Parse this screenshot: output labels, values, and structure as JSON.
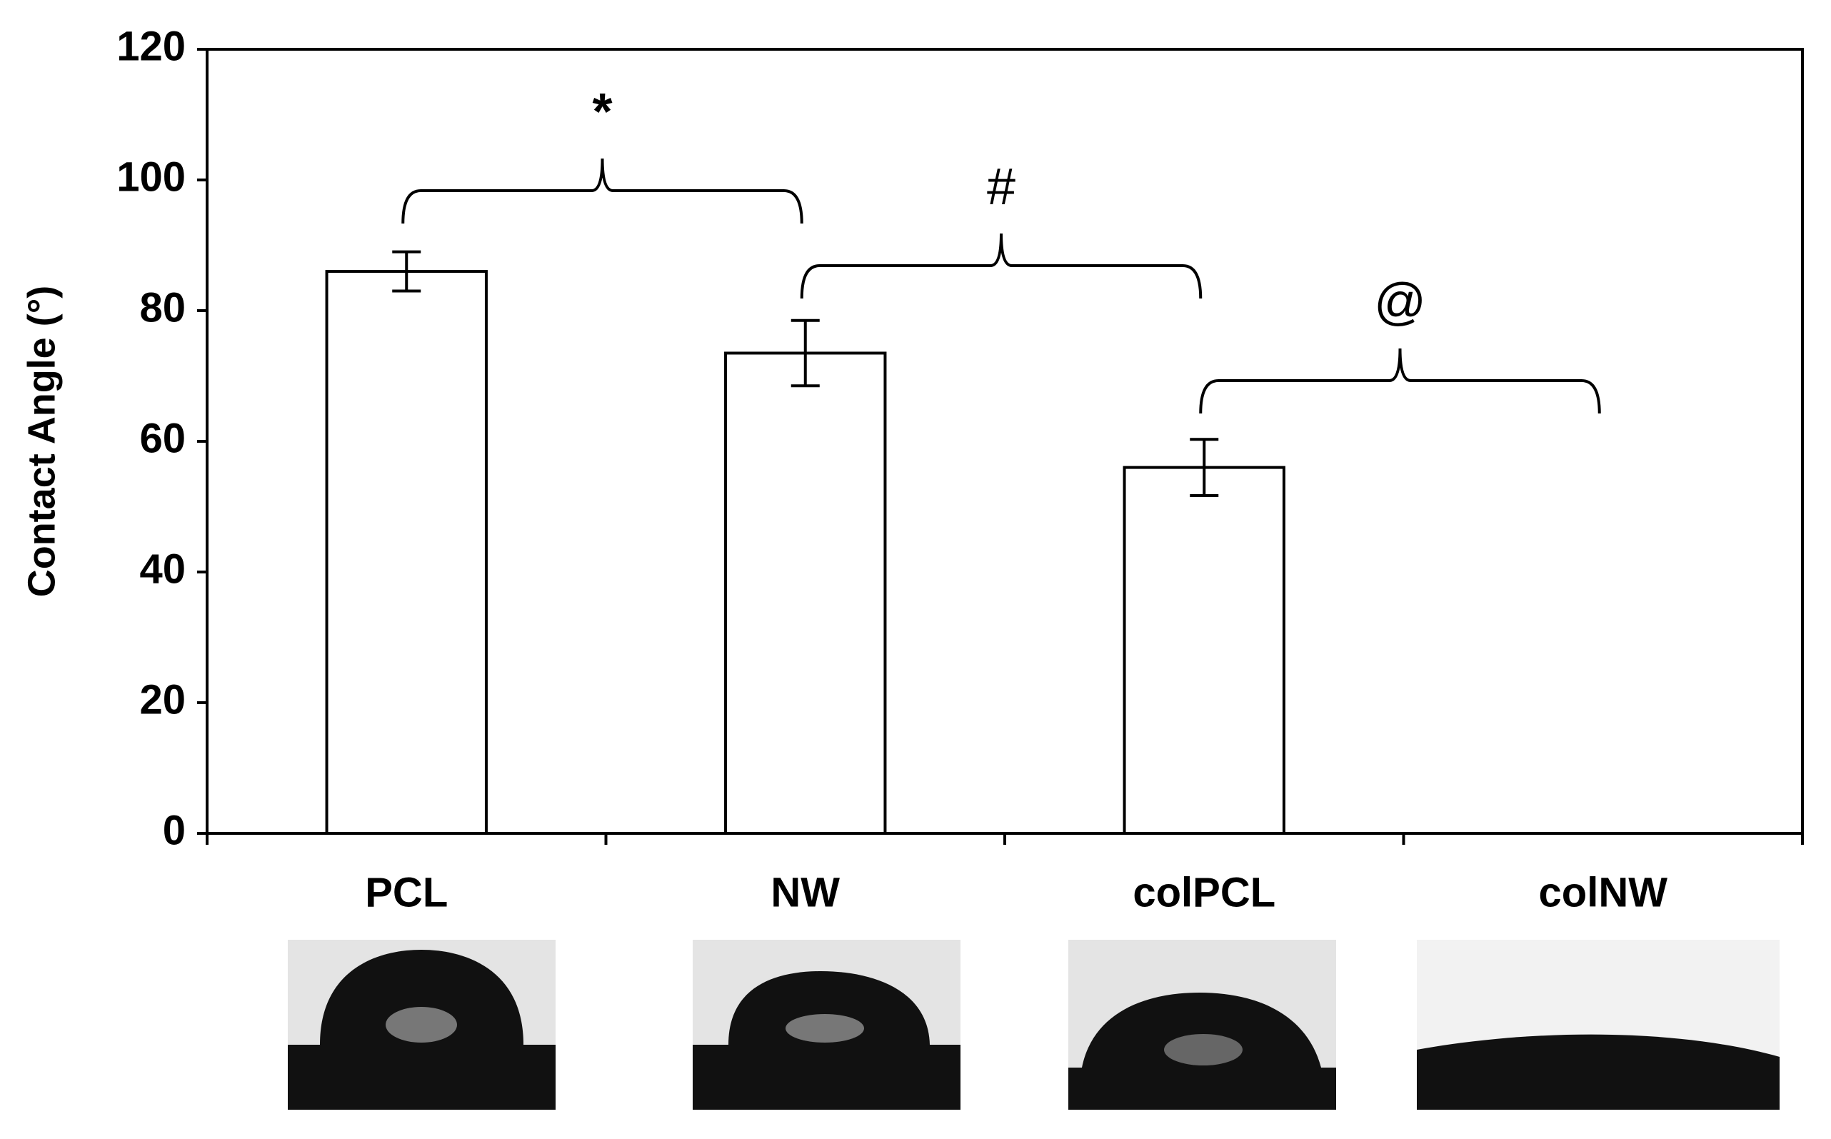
{
  "chart_data": {
    "type": "bar",
    "y_label": "Contact Angle (°)",
    "categories": [
      "PCL",
      "NW",
      "colPCL",
      "colNW"
    ],
    "values": [
      86,
      73.5,
      56,
      0
    ],
    "errors": [
      3,
      5,
      4.3,
      0
    ],
    "color": "#ffffff",
    "ylim": [
      0,
      120
    ],
    "yticks": [
      0,
      20,
      40,
      60,
      80,
      100,
      120
    ],
    "grid": false,
    "annotations": [
      "*",
      "#",
      "@"
    ]
  }
}
